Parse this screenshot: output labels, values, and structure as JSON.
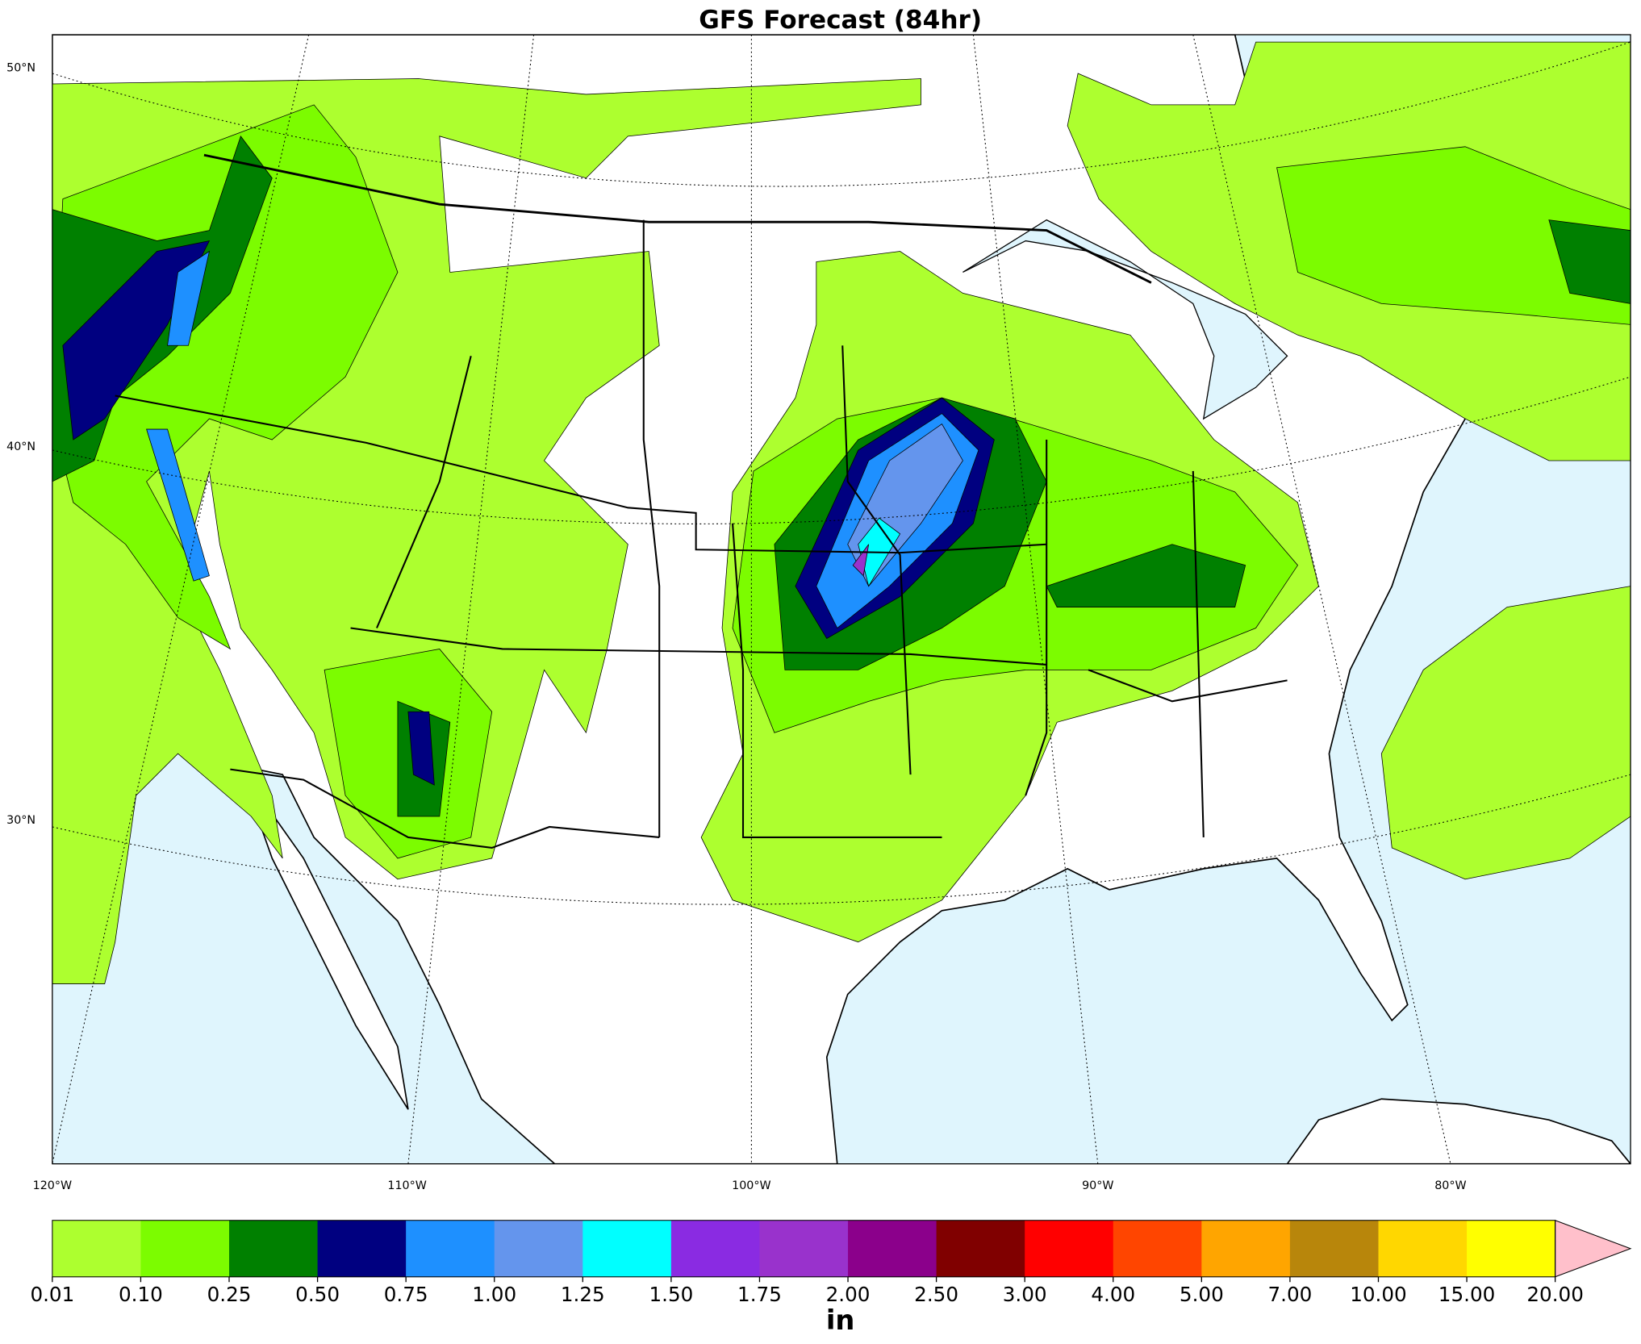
{
  "title": "GFS Forecast (84hr)",
  "lat_labels": [
    "50°N",
    "40°N",
    "30°N"
  ],
  "lon_labels": [
    "120°W",
    "110°W",
    "100°W",
    "90°W",
    "80°W"
  ],
  "colorbar": {
    "label": "in",
    "levels": [
      0.01,
      {
        "value": 0.1,
        "label": "0.10"
      },
      0.25,
      {
        "value": 0.5,
        "label": "0.50"
      },
      0.75,
      {
        "value": 1,
        "label": "1.00"
      },
      1.25,
      {
        "value": 1.5,
        "label": "1.50"
      },
      1.75,
      {
        "value": 2,
        "label": "2.00"
      },
      {
        "value": 2.5,
        "label": "2.50"
      },
      {
        "value": 3,
        "label": "3.00"
      },
      {
        "value": 4,
        "label": "4.00"
      },
      {
        "value": 5,
        "label": "5.00"
      },
      {
        "value": 7,
        "label": "7.00"
      },
      {
        "value": 10,
        "label": "10.00"
      },
      {
        "value": 15,
        "label": "15.00"
      },
      {
        "value": 20,
        "label": "20.00"
      }
    ],
    "colors": [
      "#adff2f",
      "#7cfc00",
      "#008000",
      "#000080",
      "#1e90ff",
      "#6495ed",
      "#00ffff",
      "#8a2be2",
      "#9932cc",
      "#8b008b",
      "#800000",
      "#ff0000",
      "#ff4500",
      "#ffa500",
      "#b8860b",
      "#ffd700",
      "#ffff00"
    ],
    "extend_color": "#ffc0cb"
  }
}
